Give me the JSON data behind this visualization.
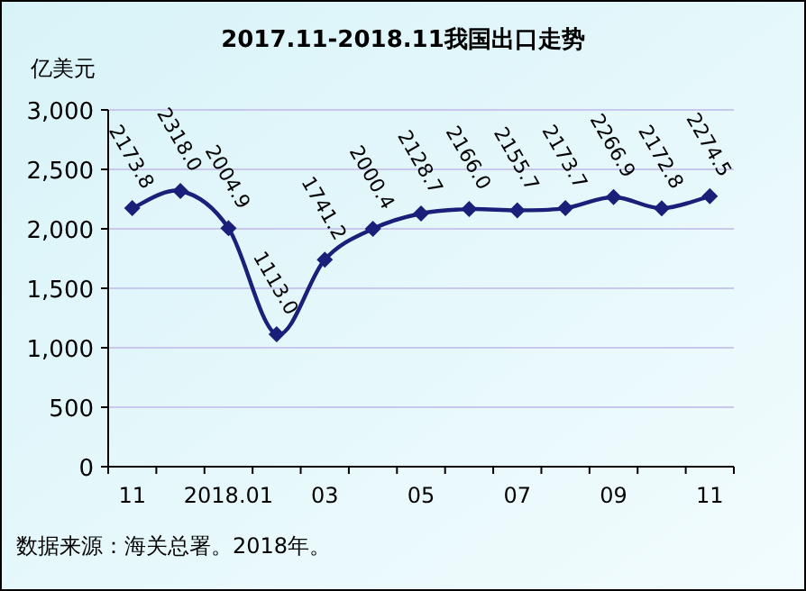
{
  "chart_data": {
    "type": "line",
    "title": "2017.11-2018.11我国出口走势",
    "ylabel": "亿美元",
    "categories": [
      "11",
      null,
      "2018.01",
      null,
      "03",
      null,
      "05",
      null,
      "07",
      null,
      "09",
      null,
      "11"
    ],
    "series": [
      {
        "color": "#1a1f7a",
        "values": [
          2173.8,
          2318.0,
          2004.9,
          1113.0,
          1741.2,
          2000.4,
          2128.7,
          2166.0,
          2155.7,
          2173.7,
          2266.9,
          2172.8,
          2274.5
        ],
        "value_labels": [
          "2173.8",
          "2318.0",
          "2004.9",
          "1113.0",
          "1741.2",
          "2000.4",
          "2128.7",
          "2166.0",
          "2155.7",
          "2173.7",
          "2266.9",
          "2172.8",
          "2274.5"
        ]
      }
    ],
    "ylim": [
      0,
      3000
    ],
    "yticks": [
      0,
      500,
      {
        "value": 1000,
        "label": "1,000"
      },
      {
        "value": 1500,
        "label": "1,500"
      },
      {
        "value": 2000,
        "label": "2,000"
      },
      {
        "value": 2500,
        "label": "2,500"
      },
      {
        "value": 3000,
        "label": "3,000"
      }
    ],
    "grid": "y",
    "marker": "diamond",
    "line_style": "solid",
    "annotations": [
      "数据来源：海关总署。2018年。"
    ]
  }
}
